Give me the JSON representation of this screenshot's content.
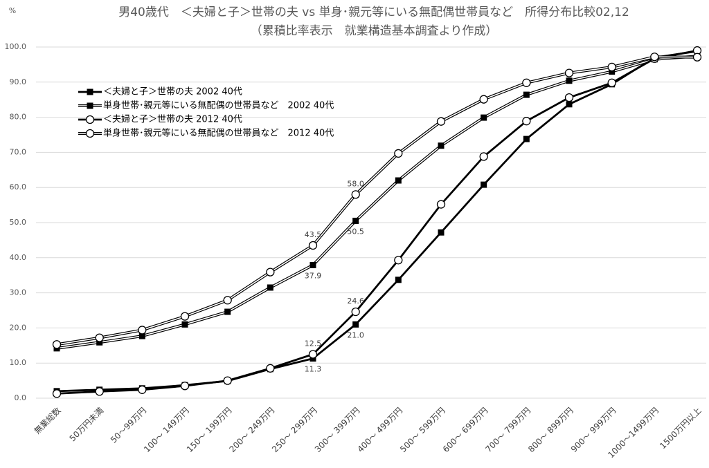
{
  "chart_data": {
    "type": "line",
    "title": "男40歳代　＜夫婦と子＞世帯の夫 vs 単身･親元等にいる無配偶世帯員など　所得分布比較02,12",
    "subtitle": "（累積比率表示　就業構造基本調査より作成）",
    "y_axis_label": "%",
    "categories": [
      "無業総数",
      "50万円未満",
      "50～99万円",
      "100～ 149万円",
      "150～ 199万円",
      "200～ 249万円",
      "250～ 299万円",
      "300～ 399万円",
      "400～ 499万円",
      "500～ 599万円",
      "600～ 699万円",
      "700～ 799万円",
      "800～ 899万円",
      "900～ 999万円",
      "1000～1499万円",
      "1500万円以上"
    ],
    "ylim": [
      0,
      100
    ],
    "yticks": [
      {
        "value": 0,
        "label": "0.0"
      },
      {
        "value": 10,
        "label": "10.0"
      },
      {
        "value": 20,
        "label": "20.0"
      },
      {
        "value": 30,
        "label": "30.0"
      },
      {
        "value": 40,
        "label": "40.0"
      },
      {
        "value": 50,
        "label": "50.0"
      },
      {
        "value": 60,
        "label": "60.0"
      },
      {
        "value": 70,
        "label": "70.0"
      },
      {
        "value": 80,
        "label": "80.0"
      },
      {
        "value": 90,
        "label": "90.0"
      },
      {
        "value": 100,
        "label": "100.0"
      }
    ],
    "grid": true,
    "legend": "top-left",
    "series": [
      {
        "name": "＜夫婦と子＞世帯の夫 2002 40代",
        "color": "#000000",
        "marker": "square",
        "line": "solid",
        "values": [
          2.0,
          2.4,
          2.8,
          3.7,
          4.9,
          8.3,
          11.3,
          21.0,
          33.7,
          47.2,
          60.8,
          73.8,
          83.7,
          89.4,
          97.0,
          98.8
        ],
        "value_labels": [
          null,
          null,
          null,
          null,
          null,
          null,
          "11.3",
          "21.0",
          null,
          null,
          null,
          null,
          null,
          null,
          null,
          null
        ]
      },
      {
        "name": "単身世帯･親元等にいる無配偶の世帯員など　2002 40代",
        "color": "#000000",
        "marker": "square",
        "line": "double",
        "values": [
          14.2,
          15.9,
          17.7,
          21.0,
          24.6,
          31.5,
          37.9,
          50.5,
          62.0,
          71.9,
          79.9,
          86.4,
          90.4,
          93.0,
          96.5,
          97.4
        ],
        "value_labels": [
          null,
          null,
          null,
          null,
          null,
          null,
          "37.9",
          "50.5",
          null,
          null,
          null,
          null,
          null,
          null,
          null,
          null
        ]
      },
      {
        "name": "＜夫婦と子＞世帯の夫 2012 40代",
        "color": "#000000",
        "marker": "circle",
        "line": "solid",
        "values": [
          1.3,
          1.9,
          2.4,
          3.5,
          5.0,
          8.5,
          12.5,
          24.6,
          39.3,
          55.2,
          68.8,
          78.9,
          85.6,
          89.8,
          96.7,
          99.0
        ],
        "value_labels": [
          null,
          null,
          null,
          null,
          null,
          null,
          "12.5",
          "24.6",
          null,
          null,
          null,
          null,
          null,
          null,
          null,
          null
        ]
      },
      {
        "name": "単身世帯･親元等にいる無配偶の世帯員など　2012 40代",
        "color": "#000000",
        "marker": "circle",
        "line": "double",
        "values": [
          15.3,
          17.2,
          19.4,
          23.3,
          27.9,
          35.9,
          43.5,
          58.0,
          69.7,
          78.8,
          85.1,
          89.8,
          92.6,
          94.3,
          97.2,
          97.1
        ],
        "value_labels": [
          null,
          null,
          null,
          null,
          null,
          null,
          "43.5",
          "58.0",
          null,
          null,
          null,
          null,
          null,
          null,
          null,
          null
        ]
      }
    ]
  }
}
